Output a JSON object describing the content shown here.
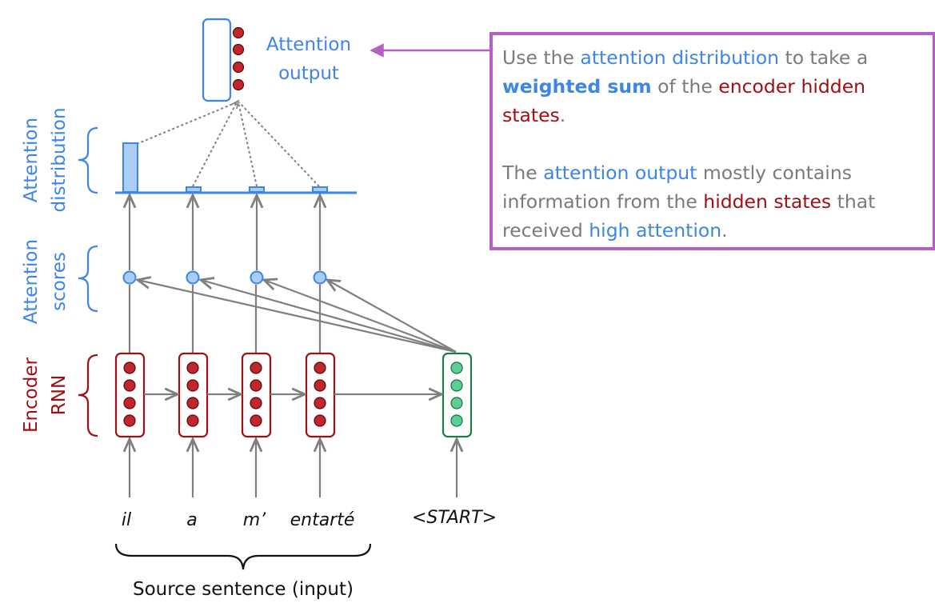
{
  "labels": {
    "attention_output_line1": "Attention",
    "attention_output_line2": "output",
    "attention_distribution_line1": "Attention",
    "attention_distribution_line2": "distribution",
    "attention_scores_line1": "Attention",
    "attention_scores_line2": "scores",
    "encoder_rnn_line1": "Encoder",
    "encoder_rnn_line2": "RNN",
    "source_sentence": "Source sentence (input)"
  },
  "words": [
    "il",
    "a",
    "m’",
    "entarté"
  ],
  "start_token": "<START>",
  "callout": {
    "p1": {
      "t1": "Use the ",
      "t2": "attention distribution",
      "t3": " to take a ",
      "t4": "weighted sum",
      "t5": " of the ",
      "t6": "encoder hidden states",
      "t7": "."
    },
    "p2": {
      "t1": "The ",
      "t2": "attention output",
      "t3": " mostly contains information from the ",
      "t4": "hidden states",
      "t5": " that received ",
      "t6": "high attention",
      "t7": "."
    }
  },
  "colors": {
    "blue": "#3d85e6",
    "red": "#a00f14",
    "green": "#1f7a4a",
    "purple": "#b55fc4",
    "gray_arrow": "#7f7f7f"
  }
}
